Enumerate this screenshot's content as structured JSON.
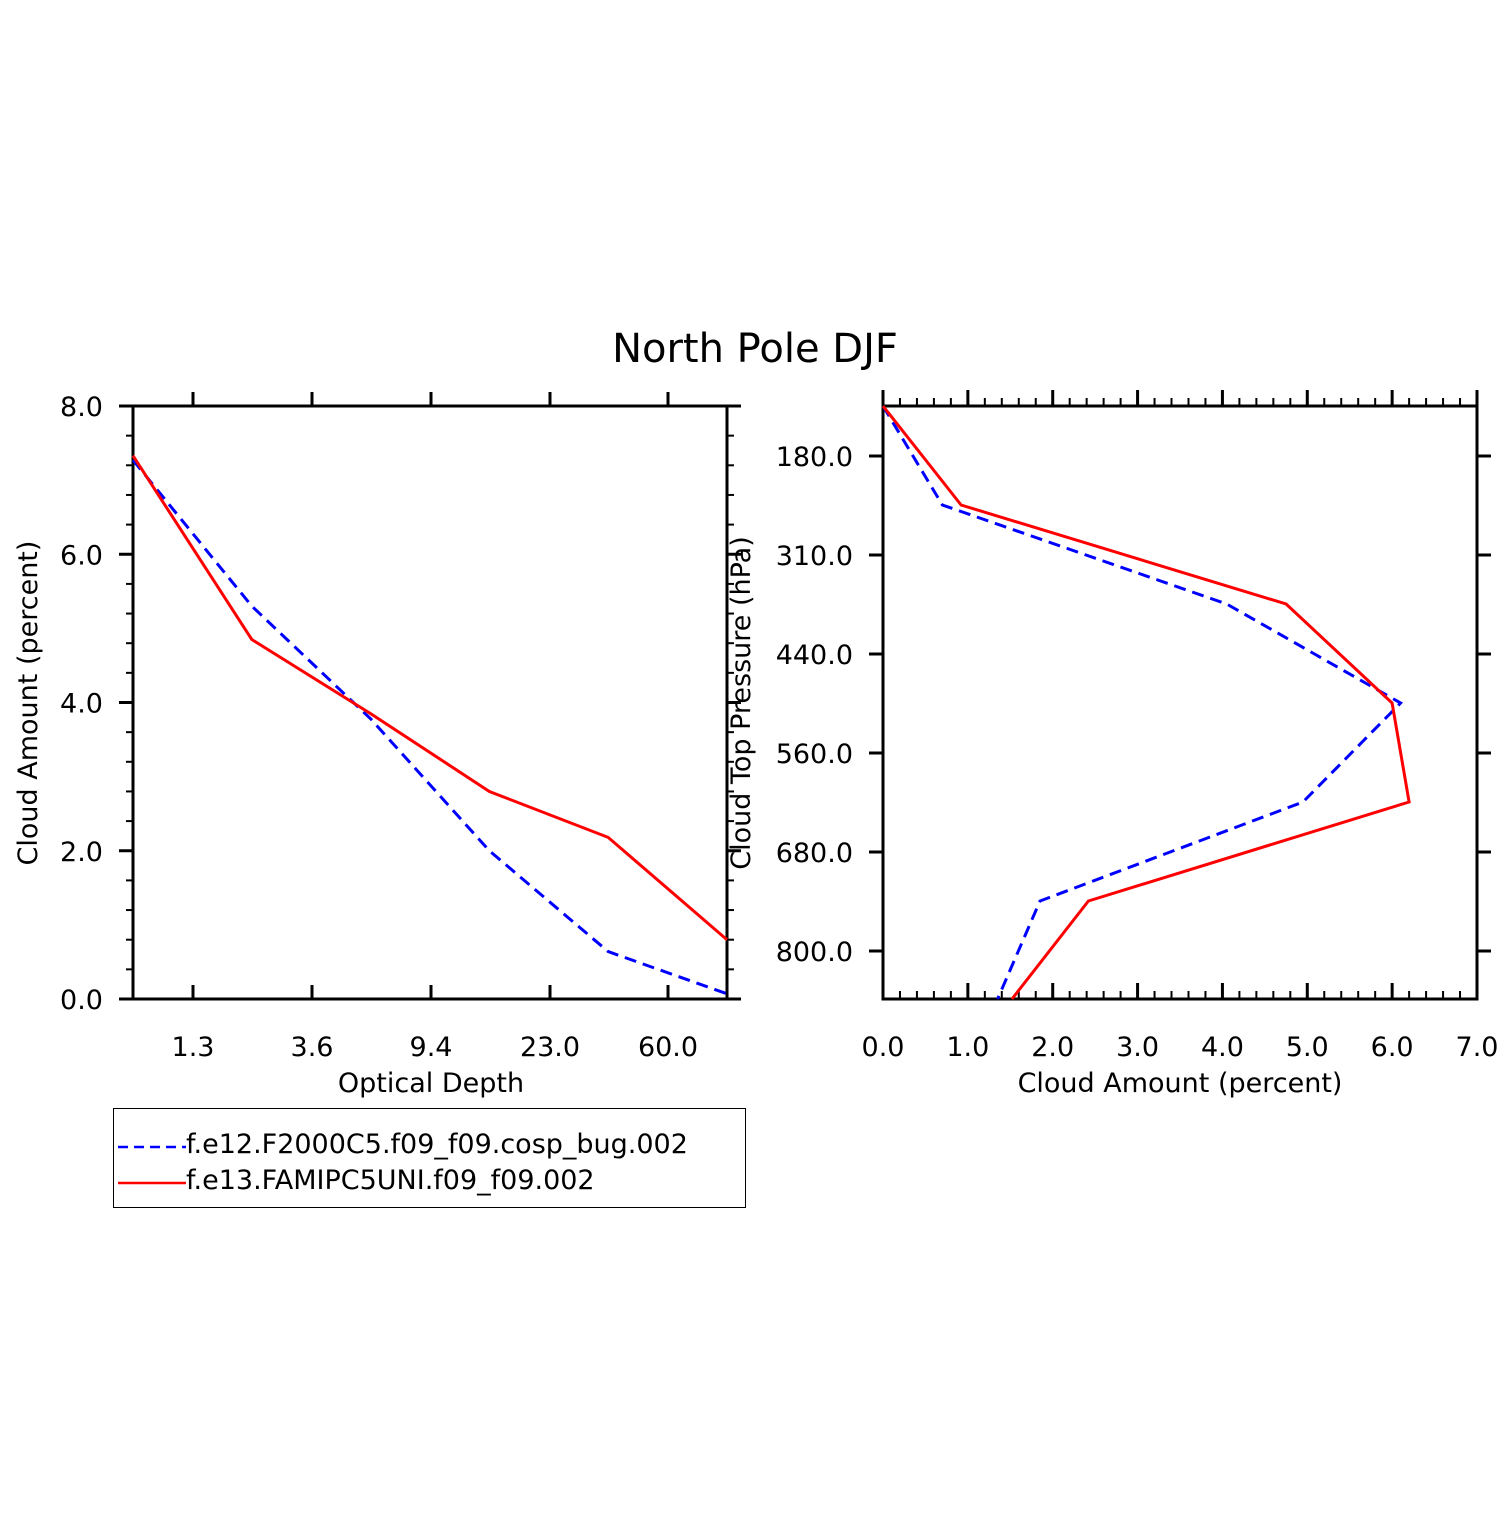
{
  "title": "North Pole DJF",
  "chart_data": [
    {
      "type": "line",
      "xlabel": "Optical Depth",
      "ylabel": "Cloud Amount (percent)",
      "x_tick_labels": [
        "1.3",
        "3.6",
        "9.4",
        "23.0",
        "60.0"
      ],
      "y_tick_labels": [
        "0.0",
        "2.0",
        "4.0",
        "6.0",
        "8.0"
      ],
      "ylim": [
        0,
        8
      ],
      "x_bin_index": [
        0,
        1,
        2,
        3,
        4,
        5
      ],
      "series": [
        {
          "name": "f.e12.F2000C5.f09_f09.cosp_bug.002",
          "color": "#0000ff",
          "dash": "dashed",
          "values": [
            7.27,
            5.3,
            3.78,
            2.0,
            0.64,
            0.07
          ]
        },
        {
          "name": "f.e13.FAMIPC5UNI.f09_f09.002",
          "color": "#ff0000",
          "dash": "solid",
          "values": [
            7.33,
            4.85,
            3.85,
            2.8,
            2.18,
            0.8
          ]
        }
      ]
    },
    {
      "type": "line",
      "xlabel": "Cloud Amount (percent)",
      "ylabel": "Cloud Top Pressure (hPa)",
      "x_tick_labels": [
        "0.0",
        "1.0",
        "2.0",
        "3.0",
        "4.0",
        "5.0",
        "6.0",
        "7.0"
      ],
      "y_tick_labels": [
        "180.0",
        "310.0",
        "440.0",
        "560.0",
        "680.0",
        "800.0"
      ],
      "xlim": [
        0,
        7
      ],
      "pressure_levels": [
        50,
        180,
        310,
        440,
        560,
        680,
        800,
        1000
      ],
      "series": [
        {
          "name": "f.e12.F2000C5.f09_f09.cosp_bug.002",
          "color": "#0000ff",
          "dash": "dashed",
          "x_values": [
            0.0,
            0.7,
            4.05,
            6.1,
            4.95,
            1.85,
            1.35
          ]
        },
        {
          "name": "f.e13.FAMIPC5UNI.f09_f09.002",
          "color": "#ff0000",
          "dash": "solid",
          "x_values": [
            0.0,
            0.92,
            4.75,
            6.0,
            6.2,
            2.42,
            1.52
          ]
        }
      ]
    }
  ],
  "legend": [
    {
      "label": "f.e12.F2000C5.f09_f09.cosp_bug.002",
      "color": "#0000ff",
      "dash": "dashed"
    },
    {
      "label": "f.e13.FAMIPC5UNI.f09_f09.002",
      "color": "#ff0000",
      "dash": "solid"
    }
  ]
}
